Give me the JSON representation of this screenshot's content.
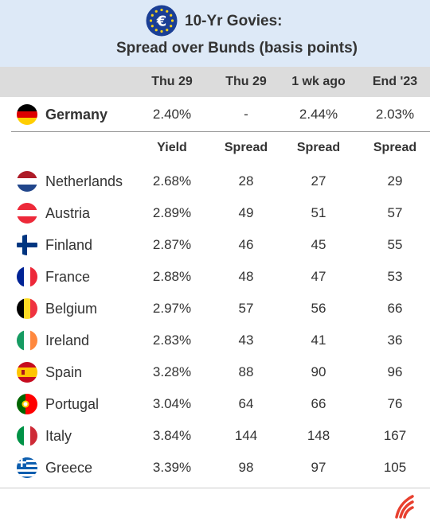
{
  "title": {
    "line1": "10-Yr Govies:",
    "line2": "Spread over Bunds (basis points)",
    "icon": "euro-flag-icon"
  },
  "columns": [
    "Thu 29",
    "Thu 29",
    "1 wk ago",
    "End '23"
  ],
  "subheaders": [
    "Yield",
    "Spread",
    "Spread",
    "Spread"
  ],
  "benchmark": {
    "country": "Germany",
    "values": [
      "2.40%",
      "-",
      "2.44%",
      "2.03%"
    ],
    "flag": "germany-flag-icon"
  },
  "colors": {
    "header_bg": "#dde9f7",
    "column_header_bg": "#dcdcdc",
    "logo": "#e8402f"
  },
  "chart_data": {
    "type": "table",
    "title": "10-Yr Govies: Spread over Bunds (basis points)",
    "columns": [
      "Thu 29 Yield",
      "Thu 29 Spread",
      "1 wk ago Spread",
      "End '23 Spread"
    ],
    "rows": [
      {
        "country": "Netherlands",
        "yield": "2.68%",
        "spread": 28,
        "spread_1wk": 27,
        "spread_end23": 29,
        "flag": "netherlands-flag-icon"
      },
      {
        "country": "Austria",
        "yield": "2.89%",
        "spread": 49,
        "spread_1wk": 51,
        "spread_end23": 57,
        "flag": "austria-flag-icon"
      },
      {
        "country": "Finland",
        "yield": "2.87%",
        "spread": 46,
        "spread_1wk": 45,
        "spread_end23": 55,
        "flag": "finland-flag-icon"
      },
      {
        "country": "France",
        "yield": "2.88%",
        "spread": 48,
        "spread_1wk": 47,
        "spread_end23": 53,
        "flag": "france-flag-icon"
      },
      {
        "country": "Belgium",
        "yield": "2.97%",
        "spread": 57,
        "spread_1wk": 56,
        "spread_end23": 66,
        "flag": "belgium-flag-icon"
      },
      {
        "country": "Ireland",
        "yield": "2.83%",
        "spread": 43,
        "spread_1wk": 41,
        "spread_end23": 36,
        "flag": "ireland-flag-icon"
      },
      {
        "country": "Spain",
        "yield": "3.28%",
        "spread": 88,
        "spread_1wk": 90,
        "spread_end23": 96,
        "flag": "spain-flag-icon"
      },
      {
        "country": "Portugal",
        "yield": "3.04%",
        "spread": 64,
        "spread_1wk": 66,
        "spread_end23": 76,
        "flag": "portugal-flag-icon"
      },
      {
        "country": "Italy",
        "yield": "3.84%",
        "spread": 144,
        "spread_1wk": 148,
        "spread_end23": 167,
        "flag": "italy-flag-icon"
      },
      {
        "country": "Greece",
        "yield": "3.39%",
        "spread": 98,
        "spread_1wk": 97,
        "spread_end23": 105,
        "flag": "greece-flag-icon"
      }
    ]
  }
}
